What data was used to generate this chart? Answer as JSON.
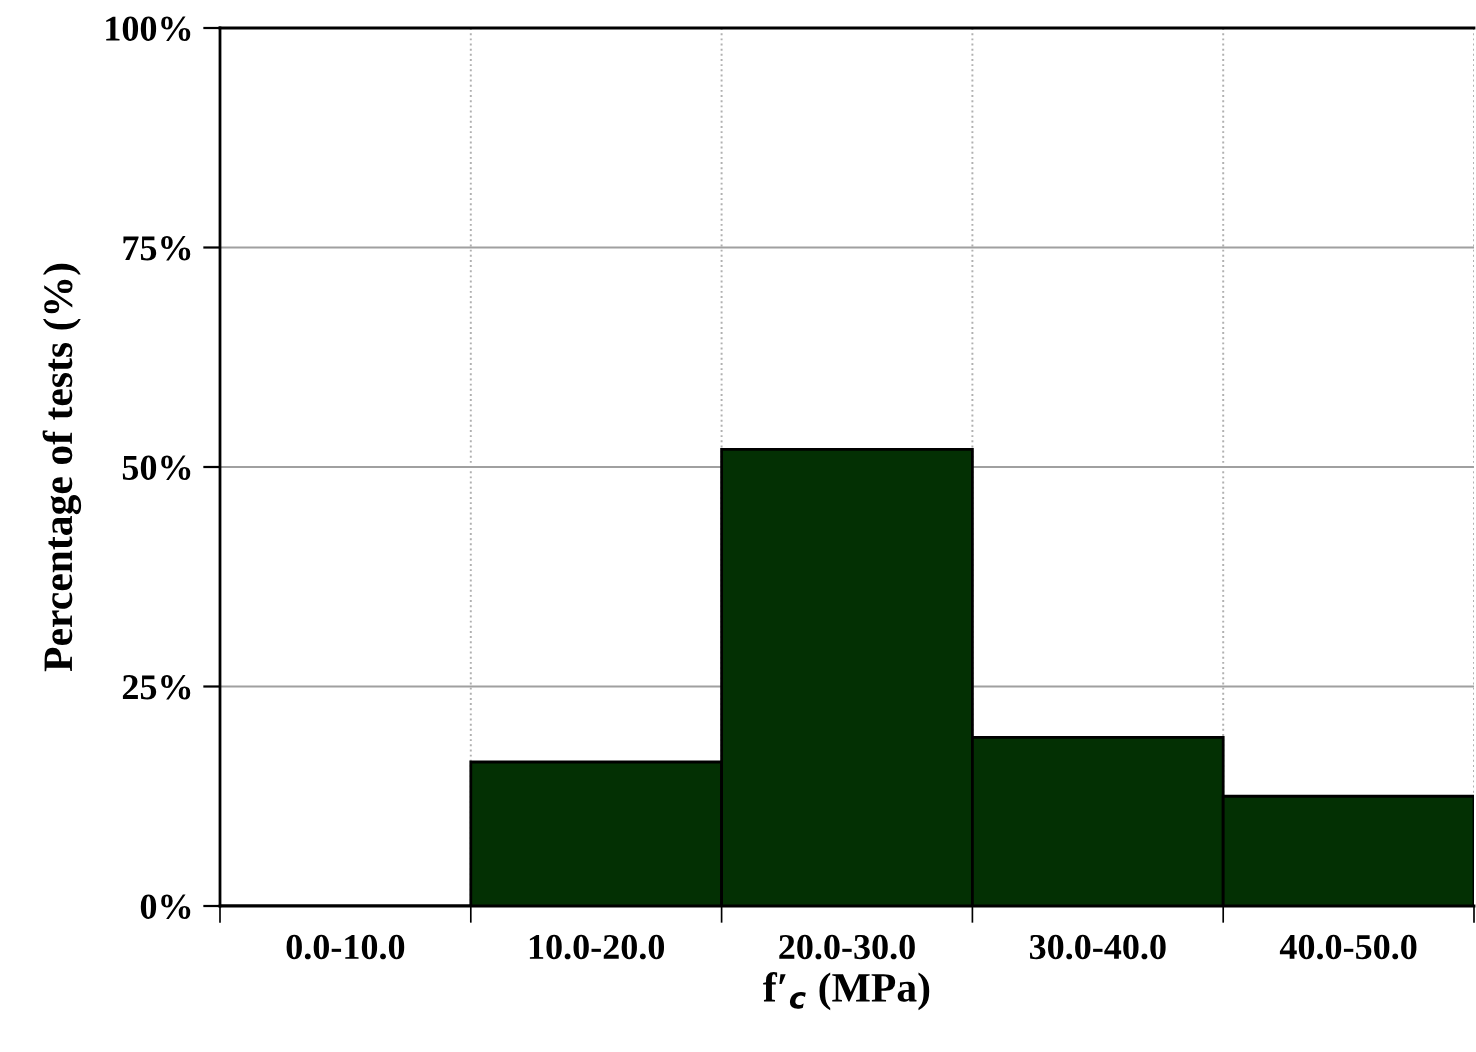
{
  "chart_data": {
    "type": "bar",
    "xlabel": "f′$_{c}$ (MPa)",
    "ylabel": "Percentage of tests (%)",
    "categories": [
      "0.0-10.0",
      "10.0-20.0",
      "20.0-30.0",
      "30.0-40.0",
      "40.0-50.0"
    ],
    "values": [
      0,
      16.4,
      52,
      19.2,
      12.5
    ],
    "color": "#033003",
    "ylim": [
      0,
      100
    ],
    "yticks": [
      {
        "value": 0,
        "label": "0%"
      },
      {
        "value": 25,
        "label": "25%"
      },
      {
        "value": 50,
        "label": "50%"
      },
      {
        "value": 75,
        "label": "75%"
      },
      {
        "value": 100,
        "label": "100%"
      }
    ],
    "grid": true
  }
}
